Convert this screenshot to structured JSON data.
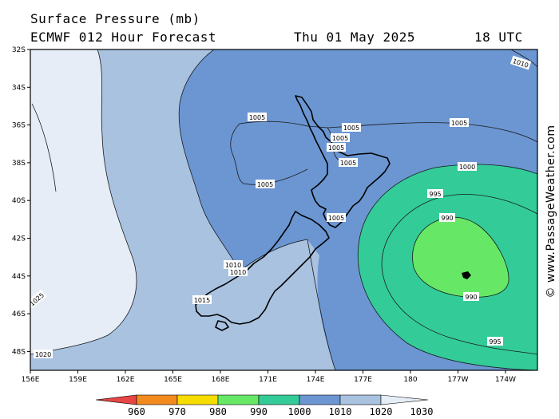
{
  "header": {
    "line1": "Surface Pressure (mb)",
    "line2": "ECMWF 012 Hour Forecast",
    "date": "Thu 01 May 2025",
    "time": "18 UTC"
  },
  "watermark": "© www.PassageWeather.com",
  "axes": {
    "lat_labels": [
      "32S",
      "34S",
      "36S",
      "38S",
      "40S",
      "42S",
      "44S",
      "46S",
      "48S"
    ],
    "lon_labels": [
      "156E",
      "159E",
      "162E",
      "165E",
      "168E",
      "171E",
      "174E",
      "177E",
      "180",
      "177W",
      "174W"
    ]
  },
  "isobar_labels": [
    {
      "text": "1010",
      "v": 1010
    },
    {
      "text": "1005",
      "v": 1005
    },
    {
      "text": "1005",
      "v": 1005
    },
    {
      "text": "1005",
      "v": 1005
    },
    {
      "text": "1005",
      "v": 1005
    },
    {
      "text": "1005",
      "v": 1005
    },
    {
      "text": "1005",
      "v": 1005
    },
    {
      "text": "1005",
      "v": 1005
    },
    {
      "text": "1005",
      "v": 1005
    },
    {
      "text": "1000",
      "v": 1000
    },
    {
      "text": "995",
      "v": 995
    },
    {
      "text": "990",
      "v": 990
    },
    {
      "text": "990",
      "v": 990
    },
    {
      "text": "995",
      "v": 995
    },
    {
      "text": "1010",
      "v": 1010
    },
    {
      "text": "1010",
      "v": 1010
    },
    {
      "text": "1015",
      "v": 1015
    },
    {
      "text": "1025",
      "v": 1025
    },
    {
      "text": "1020",
      "v": 1020
    }
  ],
  "legend": {
    "labels": [
      "960",
      "970",
      "980",
      "990",
      "1000",
      "1010",
      "1020",
      "1030"
    ],
    "colors": [
      "#e84545",
      "#f28a1d",
      "#f7dc00",
      "#66e866",
      "#33cc99",
      "#6b96d2",
      "#a9c2e0",
      "#e6edf7"
    ]
  },
  "colors": {
    "band_1020_1030": "#e6edf7",
    "band_1010_1020": "#a9c2e0",
    "band_1000_1010": "#6b96d2",
    "band_990_1000": "#33cc99",
    "band_980_990": "#66e866"
  }
}
